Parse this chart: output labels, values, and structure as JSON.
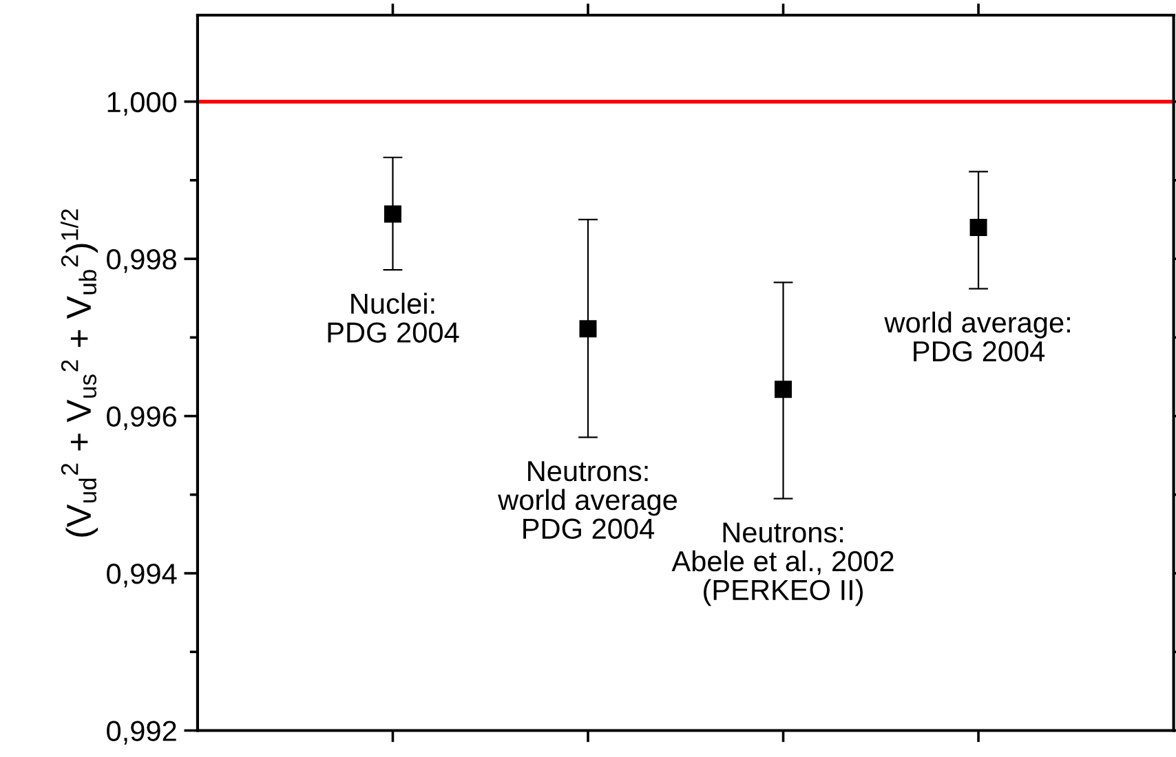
{
  "chart_data": {
    "type": "scatter",
    "ylabel": "(V$_{ud}$$^{2}$ + V$_{us}$$^{2}$ + V$_{ub}$$^{2}$)$^{1/2}$",
    "categories": [
      null,
      null,
      null,
      null
    ],
    "values": [
      0.99857,
      0.99711,
      0.99634,
      0.9984
    ],
    "errors": [
      [
        0.99786,
        0.99929
      ],
      [
        0.99573,
        0.9985
      ],
      [
        0.99495,
        0.9977
      ],
      [
        0.99762,
        0.99911
      ]
    ],
    "color": "#000000",
    "marker": "square",
    "ylim": [
      0.992,
      1.0011
    ],
    "yticks": [
      {
        "value": 0.992,
        "label": "0,992"
      },
      {
        "value": 0.994,
        "label": "0,994"
      },
      {
        "value": 0.996,
        "label": "0,996"
      },
      {
        "value": 0.998,
        "label": "0,998"
      },
      {
        "value": 1.0,
        "label": "1,000"
      }
    ],
    "ref_lines": [
      {
        "axis": "y",
        "value": 1.0,
        "color": "#ff0000"
      }
    ],
    "annotations": [
      "Nuclei:\nPDG 2004",
      "Neutrons:\nworld average\nPDG 2004",
      "Neutrons:\nAbele et al., 2002\n(PERKEO II)",
      "world average:\nPDG 2004"
    ],
    "grid": false
  }
}
